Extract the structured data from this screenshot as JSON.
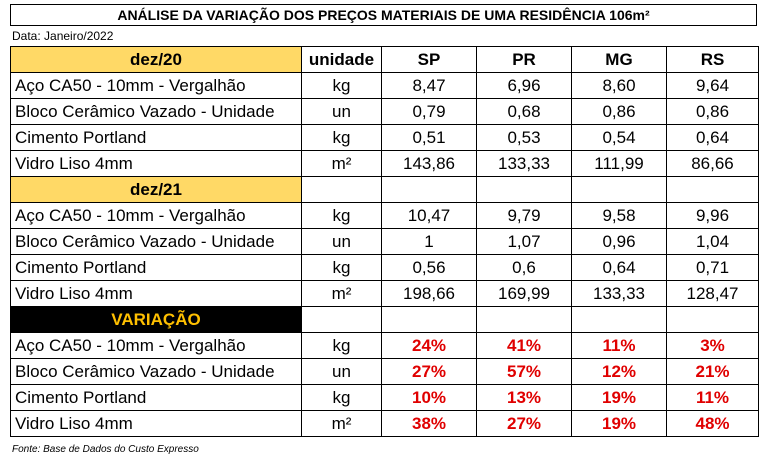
{
  "title": "ANÁLISE DA VARIAÇÃO DOS PREÇOS MATERIAIS DE UMA RESIDÊNCIA 106m²",
  "date_label": "Data: Janeiro/2022",
  "header": {
    "period": "dez/20",
    "unit": "unidade",
    "states": [
      "SP",
      "PR",
      "MG",
      "RS"
    ]
  },
  "colors": {
    "section_bg": "#ffd966",
    "variation_bg": "#000000",
    "variation_text": "#ffc000",
    "percent_text": "#e00000"
  },
  "sections": [
    {
      "items": [
        {
          "name": "Aço CA50 - 10mm - Vergalhão",
          "unit": "kg",
          "values": [
            "8,47",
            "6,96",
            "8,60",
            "9,64"
          ]
        },
        {
          "name": "Bloco Cerâmico Vazado - Unidade",
          "unit": "un",
          "values": [
            "0,79",
            "0,68",
            "0,86",
            "0,86"
          ]
        },
        {
          "name": "Cimento Portland",
          "unit": "kg",
          "values": [
            "0,51",
            "0,53",
            "0,54",
            "0,64"
          ]
        },
        {
          "name": "Vidro Liso 4mm",
          "unit": "m²",
          "values": [
            "143,86",
            "133,33",
            "111,99",
            "86,66"
          ]
        }
      ]
    },
    {
      "label": "dez/21",
      "items": [
        {
          "name": "Aço CA50 - 10mm - Vergalhão",
          "unit": "kg",
          "values": [
            "10,47",
            "9,79",
            "9,58",
            "9,96"
          ]
        },
        {
          "name": "Bloco Cerâmico Vazado - Unidade",
          "unit": "un",
          "values": [
            "1",
            "1,07",
            "0,96",
            "1,04"
          ]
        },
        {
          "name": "Cimento Portland",
          "unit": "kg",
          "values": [
            "0,56",
            "0,6",
            "0,64",
            "0,71"
          ]
        },
        {
          "name": "Vidro Liso 4mm",
          "unit": "m²",
          "values": [
            "198,66",
            "169,99",
            "133,33",
            "128,47"
          ]
        }
      ]
    },
    {
      "label": "VARIAÇÃO",
      "items": [
        {
          "name": "Aço CA50 - 10mm - Vergalhão",
          "unit": "kg",
          "values": [
            "24%",
            "41%",
            "11%",
            "3%"
          ]
        },
        {
          "name": "Bloco Cerâmico Vazado - Unidade",
          "unit": "un",
          "values": [
            "27%",
            "57%",
            "12%",
            "21%"
          ]
        },
        {
          "name": "Cimento Portland",
          "unit": "kg",
          "values": [
            "10%",
            "13%",
            "19%",
            "11%"
          ]
        },
        {
          "name": "Vidro Liso 4mm",
          "unit": "m²",
          "values": [
            "38%",
            "27%",
            "19%",
            "48%"
          ]
        }
      ]
    }
  ],
  "source": "Fonte: Base de Dados do Custo Expresso"
}
